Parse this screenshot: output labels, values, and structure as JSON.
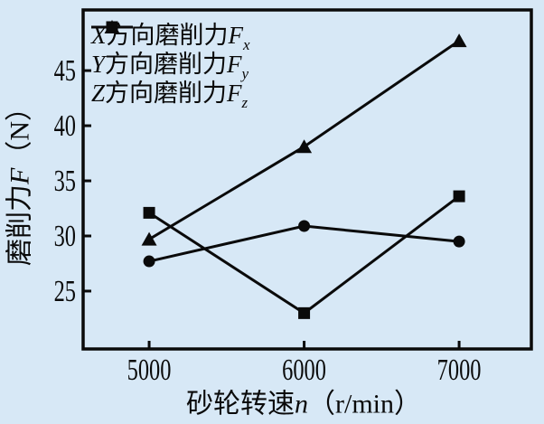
{
  "figure": {
    "background_color": "#d7e8f6",
    "ink_color": "#0a0a0a"
  },
  "chart_data": {
    "type": "line",
    "x": [
      5000,
      6000,
      7000
    ],
    "series": [
      {
        "id": "Fx",
        "marker": "square",
        "values": [
          32.1,
          23.0,
          33.6
        ],
        "legend": {
          "axis": "X",
          "cjk": "方向磨削力",
          "sym": "F",
          "sub": "x"
        }
      },
      {
        "id": "Fy",
        "marker": "triangle",
        "values": [
          29.7,
          38.1,
          47.7
        ],
        "legend": {
          "axis": "Y",
          "cjk": "方向磨削力",
          "sym": "F",
          "sub": "y"
        }
      },
      {
        "id": "Fz",
        "marker": "circle",
        "values": [
          27.7,
          30.9,
          29.5
        ],
        "legend": {
          "axis": "Z",
          "cjk": "方向磨削力",
          "sym": "F",
          "sub": "z"
        }
      }
    ],
    "xlabel": {
      "cjk": "砂轮转速",
      "sym": "n",
      "unit": "（r/min）"
    },
    "ylabel": {
      "cjk": "磨削力",
      "sym": "F",
      "unit": "（N）"
    },
    "x_ticks": [
      5000,
      6000,
      7000
    ],
    "y_ticks": [
      25,
      30,
      35,
      40,
      45
    ],
    "x_range": [
      4574,
      7466
    ],
    "y_range": [
      19.75,
      50.5
    ],
    "grid": false,
    "legend_position": "top-left",
    "line_color": "#0a0a0a",
    "line_width": 3
  }
}
